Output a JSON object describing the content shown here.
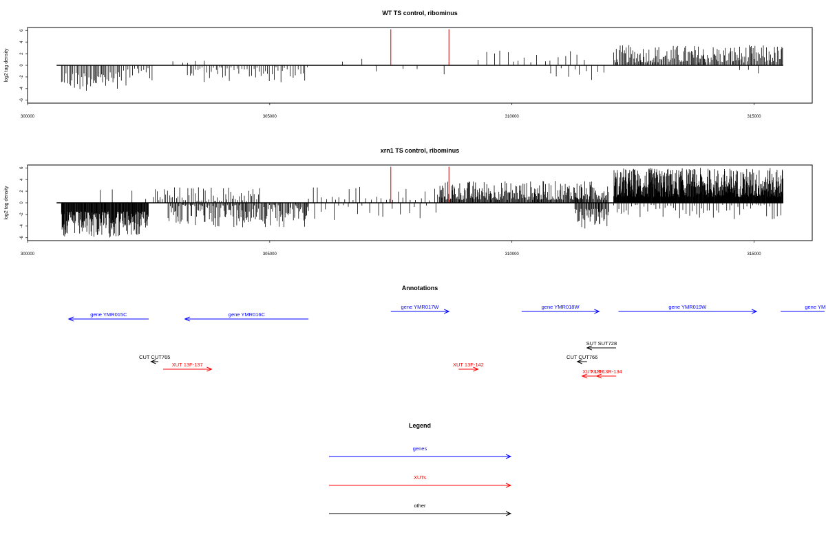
{
  "chart_data": [
    {
      "type": "bar",
      "title": "WT TS control, ribominus",
      "ylabel": "log2 tag density",
      "xlim": [
        300000,
        316200
      ],
      "ylim": [
        -6.5,
        6.5
      ],
      "xticks": [
        300000,
        305000,
        310000,
        315000
      ],
      "yticks": [
        -6,
        -4,
        -2,
        0,
        2,
        4,
        6
      ],
      "data_range": [
        300600,
        315600
      ],
      "highlight_color": "#cc0000",
      "bar_color": "#000000",
      "highlights": [
        {
          "x": 307500,
          "y": 6.2
        },
        {
          "x": 308700,
          "y": 6.2
        }
      ],
      "regions": [
        {
          "start": 300700,
          "end": 301900,
          "min": 1.2,
          "max": 4.5,
          "dir": -1,
          "step": 28
        },
        {
          "start": 301900,
          "end": 302600,
          "min": 0.5,
          "max": 3.5,
          "dir": -1,
          "step": 40
        },
        {
          "start": 303000,
          "end": 303700,
          "min": 0.3,
          "max": 1.2,
          "dir": 1,
          "step": 160
        },
        {
          "start": 303300,
          "end": 305800,
          "min": 0.3,
          "max": 3.0,
          "dir": -1,
          "step": 45
        },
        {
          "start": 306500,
          "end": 307200,
          "min": 0.5,
          "max": 1.5,
          "dir": 1,
          "step": 320
        },
        {
          "start": 307200,
          "end": 308700,
          "min": 0.5,
          "max": 2.0,
          "dir": -1,
          "step": 420
        },
        {
          "start": 309300,
          "end": 311500,
          "min": 0.5,
          "max": 3.2,
          "dir": 1,
          "step": 140
        },
        {
          "start": 310800,
          "end": 312000,
          "min": 0.5,
          "max": 2.6,
          "dir": -1,
          "step": 110
        },
        {
          "start": 312100,
          "end": 315600,
          "min": 0.5,
          "max": 3.5,
          "dir": 1,
          "step": 20
        },
        {
          "start": 314700,
          "end": 315200,
          "min": 0.3,
          "max": 1.6,
          "dir": -1,
          "step": 150
        }
      ]
    },
    {
      "type": "bar",
      "title": "xrn1 TS control, ribominus",
      "ylabel": "log2 tag density",
      "xlim": [
        300000,
        316200
      ],
      "ylim": [
        -6.5,
        6.5
      ],
      "xticks": [
        300000,
        305000,
        310000,
        315000
      ],
      "yticks": [
        -6,
        -4,
        -2,
        0,
        2,
        4,
        6
      ],
      "data_range": [
        300600,
        315600
      ],
      "highlight_color": "#cc0000",
      "bar_color": "#000000",
      "highlights": [
        {
          "x": 307500,
          "y": 6.2
        },
        {
          "x": 308700,
          "y": 6.2
        }
      ],
      "regions": [
        {
          "start": 300700,
          "end": 302500,
          "min": 1.5,
          "max": 6.0,
          "dir": -1,
          "step": 9
        },
        {
          "start": 301500,
          "end": 302700,
          "min": 0.4,
          "max": 2.4,
          "dir": 1,
          "step": 300
        },
        {
          "start": 302600,
          "end": 304800,
          "min": 0.3,
          "max": 2.8,
          "dir": 1,
          "step": 38
        },
        {
          "start": 302900,
          "end": 305800,
          "min": 0.3,
          "max": 4.2,
          "dir": -1,
          "step": 20
        },
        {
          "start": 305800,
          "end": 308500,
          "min": 0.4,
          "max": 2.8,
          "dir": 1,
          "step": 95
        },
        {
          "start": 305800,
          "end": 308500,
          "min": 0.3,
          "max": 3.2,
          "dir": -1,
          "step": 140
        },
        {
          "start": 308500,
          "end": 312000,
          "min": 0.5,
          "max": 3.8,
          "dir": 1,
          "step": 14
        },
        {
          "start": 311300,
          "end": 312000,
          "min": 1.0,
          "max": 4.5,
          "dir": -1,
          "step": 15
        },
        {
          "start": 312100,
          "end": 315600,
          "min": 1.0,
          "max": 6.0,
          "dir": 1,
          "step": 6
        },
        {
          "start": 312100,
          "end": 315600,
          "min": 0.3,
          "max": 2.8,
          "dir": -1,
          "step": 60
        }
      ]
    }
  ],
  "annotations": {
    "title": "Annotations",
    "xlim": [
      300000,
      316200
    ],
    "features": [
      {
        "label": "gene YMR015C",
        "start": 302500,
        "end": 300850,
        "row": 0,
        "color": "#0000ff"
      },
      {
        "label": "gene YMR016C",
        "start": 305800,
        "end": 303250,
        "row": 0,
        "color": "#0000ff"
      },
      {
        "label": "gene YMR017W",
        "start": 307500,
        "end": 308700,
        "row": 1,
        "color": "#0000ff"
      },
      {
        "label": "gene YMR018W",
        "start": 310200,
        "end": 311800,
        "row": 1,
        "color": "#0000ff"
      },
      {
        "label": "gene YMR019W",
        "start": 312200,
        "end": 315050,
        "row": 1,
        "color": "#0000ff"
      },
      {
        "label": "gene YMI",
        "start": 315550,
        "end": 317000,
        "row": 1,
        "color": "#0000ff"
      },
      {
        "label": "SUT SUT728",
        "start": 312150,
        "end": 311550,
        "row": 2,
        "color": "#000000"
      },
      {
        "label": "CUT CUT765",
        "start": 302700,
        "end": 302550,
        "row": 3,
        "color": "#000000"
      },
      {
        "label": "CUT CUT766",
        "start": 311550,
        "end": 311350,
        "row": 3,
        "color": "#000000"
      },
      {
        "label": "XUT 13F-137",
        "start": 302800,
        "end": 303800,
        "row": 4,
        "color": "#ff0000"
      },
      {
        "label": "XUT 13F-142",
        "start": 308900,
        "end": 309300,
        "row": 4,
        "color": "#ff0000"
      },
      {
        "label": "XUT 13R-134",
        "start": 312150,
        "end": 311750,
        "row": 5,
        "color": "#ff0000"
      },
      {
        "label": "XUT 13R",
        "start": 311900,
        "end": 311450,
        "row": 5,
        "color": "#ff0000"
      }
    ]
  },
  "legend": {
    "title": "Legend",
    "items": [
      {
        "label": "genes",
        "color": "#0000ff"
      },
      {
        "label": "XUTs",
        "color": "#ff0000"
      },
      {
        "label": "other",
        "color": "#000000"
      }
    ]
  }
}
